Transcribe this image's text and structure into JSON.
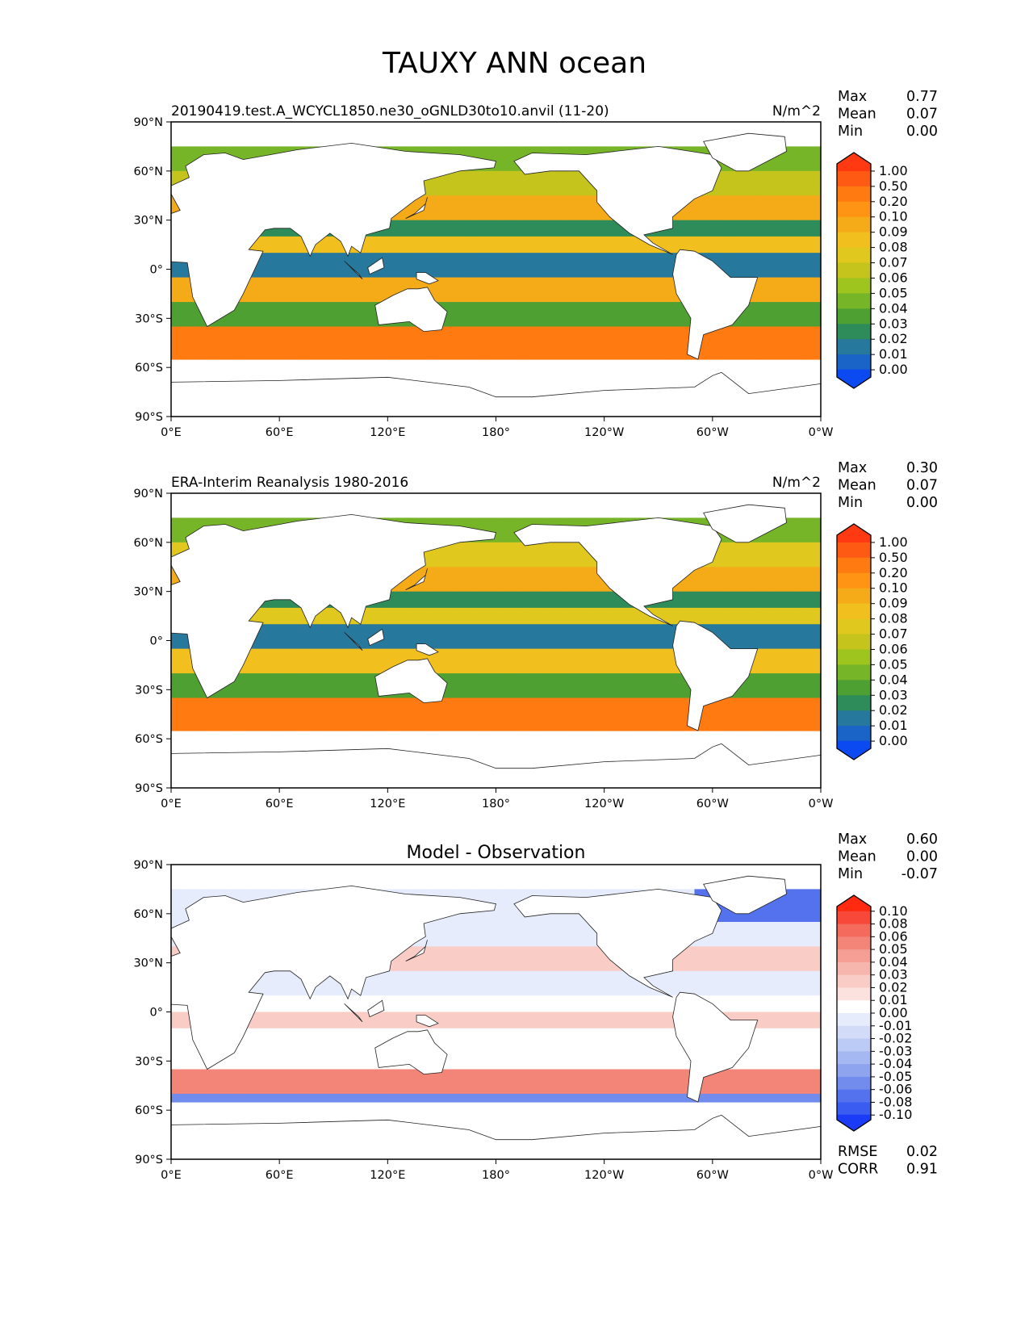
{
  "figure": {
    "title": "TAUXY ANN ocean"
  },
  "chart_data": [
    {
      "type": "heatmap",
      "panel": "test",
      "title_left": "20190419.test.A_WCYCL1850.ne30_oGNLD30to10.anvil (11-20)",
      "title_center": "",
      "units": "N/m^2",
      "stats": [
        {
          "label": "Max",
          "value": "0.77"
        },
        {
          "label": "Mean",
          "value": "0.07"
        },
        {
          "label": "Min",
          "value": "0.00"
        }
      ],
      "xticks": [
        "0°E",
        "60°E",
        "120°E",
        "180°",
        "120°W",
        "60°W",
        "0°W"
      ],
      "yticks": [
        "90°N",
        "60°N",
        "30°N",
        "0°",
        "30°S",
        "60°S",
        "90°S"
      ],
      "xlim": [
        0,
        360
      ],
      "ylim": [
        -90,
        90
      ],
      "colorbar": {
        "levels": [
          "1.00",
          "0.50",
          "0.20",
          "0.10",
          "0.09",
          "0.08",
          "0.07",
          "0.06",
          "0.05",
          "0.04",
          "0.03",
          "0.02",
          "0.01",
          "0.00"
        ],
        "colors": [
          "#ff3a12",
          "#ff5a14",
          "#ff7a10",
          "#ff9414",
          "#f5aa18",
          "#f2c01e",
          "#e0c81e",
          "#c4c41c",
          "#9ec41e",
          "#76b428",
          "#4ea032",
          "#2e8c5a",
          "#26789c",
          "#1a64c8",
          "#0a4af0"
        ]
      },
      "extra_stats": []
    },
    {
      "type": "heatmap",
      "panel": "reference",
      "title_left": "ERA-Interim Reanalysis 1980-2016",
      "title_center": "",
      "units": "N/m^2",
      "stats": [
        {
          "label": "Max",
          "value": "0.30"
        },
        {
          "label": "Mean",
          "value": "0.07"
        },
        {
          "label": "Min",
          "value": "0.00"
        }
      ],
      "xticks": [
        "0°E",
        "60°E",
        "120°E",
        "180°",
        "120°W",
        "60°W",
        "0°W"
      ],
      "yticks": [
        "90°N",
        "60°N",
        "30°N",
        "0°",
        "30°S",
        "60°S",
        "90°S"
      ],
      "xlim": [
        0,
        360
      ],
      "ylim": [
        -90,
        90
      ],
      "colorbar": {
        "levels": [
          "1.00",
          "0.50",
          "0.20",
          "0.10",
          "0.09",
          "0.08",
          "0.07",
          "0.06",
          "0.05",
          "0.04",
          "0.03",
          "0.02",
          "0.01",
          "0.00"
        ],
        "colors": [
          "#ff3a12",
          "#ff5a14",
          "#ff7a10",
          "#ff9414",
          "#f5aa18",
          "#f2c01e",
          "#e0c81e",
          "#c4c41c",
          "#9ec41e",
          "#76b428",
          "#4ea032",
          "#2e8c5a",
          "#26789c",
          "#1a64c8",
          "#0a4af0"
        ]
      },
      "extra_stats": []
    },
    {
      "type": "heatmap",
      "panel": "difference",
      "title_left": "",
      "title_center": "Model - Observation",
      "units": "",
      "stats": [
        {
          "label": "Max",
          "value": "0.60"
        },
        {
          "label": "Mean",
          "value": "0.00"
        },
        {
          "label": "Min",
          "value": "-0.07"
        }
      ],
      "xticks": [
        "0°E",
        "60°E",
        "120°E",
        "180°",
        "120°W",
        "60°W",
        "0°W"
      ],
      "yticks": [
        "90°N",
        "60°N",
        "30°N",
        "0°",
        "30°S",
        "60°S",
        "90°S"
      ],
      "xlim": [
        0,
        360
      ],
      "ylim": [
        -90,
        90
      ],
      "colorbar": {
        "levels": [
          "0.10",
          "0.08",
          "0.06",
          "0.05",
          "0.04",
          "0.03",
          "0.02",
          "0.01",
          "0.00",
          "-0.01",
          "-0.02",
          "-0.03",
          "-0.04",
          "-0.05",
          "-0.06",
          "-0.08",
          "-0.10"
        ],
        "colors": [
          "#ff2a10",
          "#f8483a",
          "#f46a5c",
          "#f38478",
          "#f49e94",
          "#f6b6ae",
          "#f9ccc6",
          "#fce2de",
          "#ffffff",
          "#e6ecfb",
          "#d2dcf8",
          "#bccbf5",
          "#a6b8f2",
          "#8ea4ef",
          "#728ced",
          "#5472ee",
          "#3a5cf0",
          "#1a3cf6"
        ]
      },
      "extra_stats": [
        {
          "label": "RMSE",
          "value": "0.02"
        },
        {
          "label": "CORR",
          "value": "0.91"
        }
      ]
    }
  ]
}
